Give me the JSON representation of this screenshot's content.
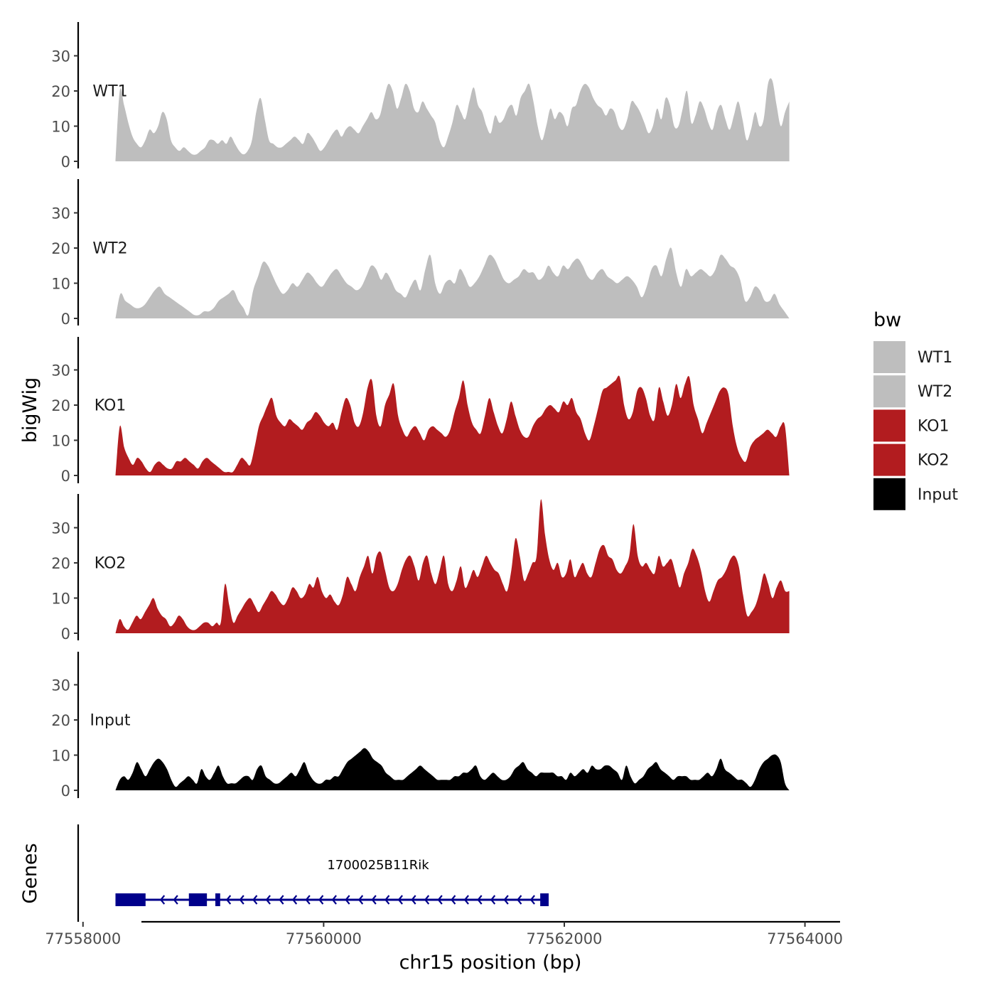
{
  "chart_data": {
    "type": "area",
    "chromosome": "chr15",
    "xlabel": "chr15 position (bp)",
    "ylabel": "bigWig",
    "genes_panel_label": "Genes",
    "xlim": [
      77557960,
      77564280
    ],
    "x_ticks": [
      77558000,
      77560000,
      77562000,
      77564000
    ],
    "x_tick_labels": [
      "77558000",
      "77560000",
      "77562000",
      "77564000"
    ],
    "ylim": [
      0,
      40
    ],
    "y_ticks": [
      0,
      10,
      20,
      30
    ],
    "y_tick_labels": [
      "0",
      "10",
      "20",
      "30"
    ],
    "data_range": [
      77558270,
      77563870
    ],
    "legend": {
      "title": "bw",
      "entries": [
        {
          "label": "WT1",
          "color": "#bebebe"
        },
        {
          "label": "WT2",
          "color": "#bebebe"
        },
        {
          "label": "KO1",
          "color": "#b21c1f"
        },
        {
          "label": "KO2",
          "color": "#b21c1f"
        },
        {
          "label": "Input",
          "color": "#000000"
        }
      ]
    },
    "series": [
      {
        "name": "WT1",
        "color": "#bebebe",
        "values": [
          0,
          20,
          16,
          11,
          7,
          5,
          4,
          6,
          9,
          8,
          10,
          14,
          12,
          6,
          4,
          3,
          4,
          3,
          2,
          2,
          3,
          4,
          6,
          6,
          5,
          6,
          5,
          7,
          5,
          3,
          2,
          3,
          6,
          14,
          18,
          12,
          6,
          5,
          4,
          4,
          5,
          6,
          7,
          6,
          5,
          8,
          7,
          5,
          3,
          4,
          6,
          8,
          9,
          7,
          9,
          10,
          9,
          8,
          10,
          12,
          14,
          12,
          13,
          18,
          22,
          20,
          15,
          18,
          22,
          20,
          15,
          14,
          17,
          15,
          13,
          11,
          6,
          4,
          7,
          11,
          16,
          14,
          12,
          17,
          21,
          16,
          14,
          10,
          8,
          13,
          11,
          12,
          15,
          16,
          13,
          18,
          20,
          22,
          17,
          10,
          6,
          10,
          15,
          12,
          14,
          13,
          10,
          15,
          16,
          20,
          22,
          21,
          18,
          16,
          15,
          13,
          15,
          14,
          10,
          9,
          12,
          17,
          16,
          14,
          11,
          8,
          10,
          15,
          12,
          18,
          16,
          10,
          10,
          15,
          20,
          11,
          13,
          17,
          15,
          11,
          9,
          14,
          16,
          12,
          9,
          13,
          17,
          12,
          6,
          9,
          14,
          10,
          12,
          22,
          23,
          16,
          10,
          14,
          17
        ],
        "max_label": 23
      },
      {
        "name": "WT2",
        "color": "#bebebe",
        "values": [
          0,
          7,
          5,
          4,
          3,
          3,
          4,
          6,
          8,
          9,
          7,
          6,
          5,
          4,
          3,
          2,
          1,
          1,
          2,
          2,
          3,
          5,
          6,
          7,
          8,
          5,
          3,
          1,
          8,
          12,
          16,
          15,
          12,
          9,
          7,
          8,
          10,
          9,
          11,
          13,
          12,
          10,
          9,
          11,
          13,
          14,
          12,
          10,
          9,
          8,
          9,
          12,
          15,
          14,
          11,
          13,
          11,
          8,
          7,
          6,
          9,
          11,
          8,
          14,
          18,
          10,
          7,
          10,
          11,
          10,
          14,
          12,
          9,
          10,
          12,
          15,
          18,
          17,
          14,
          11,
          10,
          11,
          12,
          14,
          13,
          13,
          11,
          12,
          15,
          13,
          12,
          15,
          14,
          16,
          17,
          15,
          12,
          11,
          13,
          14,
          12,
          11,
          10,
          11,
          12,
          11,
          9,
          6,
          9,
          14,
          15,
          12,
          17,
          20,
          13,
          9,
          14,
          12,
          13,
          14,
          13,
          12,
          14,
          18,
          17,
          15,
          14,
          11,
          5,
          6,
          9,
          8,
          5,
          5,
          7,
          4,
          2,
          0
        ],
        "max_label": 20
      },
      {
        "name": "KO1",
        "color": "#b21c1f",
        "values": [
          0,
          14,
          8,
          5,
          3,
          5,
          4,
          2,
          1,
          3,
          4,
          3,
          2,
          2,
          4,
          4,
          5,
          4,
          3,
          2,
          4,
          5,
          4,
          3,
          2,
          1,
          1,
          1,
          3,
          5,
          4,
          3,
          8,
          14,
          17,
          20,
          22,
          17,
          15,
          14,
          16,
          15,
          14,
          13,
          15,
          16,
          18,
          17,
          15,
          14,
          15,
          13,
          18,
          22,
          20,
          15,
          14,
          18,
          25,
          27,
          17,
          14,
          20,
          23,
          26,
          17,
          13,
          11,
          13,
          14,
          12,
          10,
          13,
          14,
          13,
          12,
          11,
          13,
          18,
          22,
          27,
          20,
          15,
          13,
          12,
          17,
          22,
          18,
          14,
          12,
          16,
          21,
          17,
          13,
          11,
          11,
          14,
          16,
          17,
          19,
          20,
          19,
          18,
          21,
          20,
          22,
          18,
          16,
          12,
          10,
          14,
          19,
          24,
          25,
          26,
          27,
          28,
          20,
          16,
          18,
          24,
          25,
          22,
          17,
          16,
          25,
          21,
          17,
          20,
          26,
          22,
          26,
          28,
          20,
          16,
          12,
          15,
          18,
          21,
          24,
          25,
          23,
          14,
          8,
          5,
          4,
          8,
          10,
          11,
          12,
          13,
          12,
          11,
          14,
          14,
          0
        ],
        "max_label": 28
      },
      {
        "name": "KO2",
        "color": "#b21c1f",
        "values": [
          0,
          4,
          2,
          1,
          3,
          5,
          4,
          6,
          8,
          10,
          7,
          5,
          4,
          2,
          3,
          5,
          4,
          2,
          1,
          1,
          2,
          3,
          3,
          2,
          3,
          3,
          14,
          8,
          3,
          5,
          7,
          9,
          10,
          8,
          6,
          8,
          10,
          12,
          11,
          9,
          8,
          10,
          13,
          12,
          10,
          11,
          14,
          13,
          16,
          12,
          10,
          11,
          9,
          8,
          11,
          16,
          14,
          12,
          16,
          19,
          22,
          17,
          22,
          23,
          18,
          13,
          12,
          14,
          18,
          21,
          22,
          19,
          15,
          20,
          22,
          17,
          14,
          18,
          22,
          14,
          12,
          15,
          19,
          13,
          15,
          18,
          16,
          19,
          22,
          20,
          18,
          17,
          14,
          12,
          18,
          27,
          22,
          15,
          17,
          20,
          22,
          38,
          28,
          21,
          18,
          20,
          16,
          17,
          21,
          16,
          18,
          20,
          17,
          16,
          20,
          24,
          25,
          22,
          21,
          18,
          17,
          19,
          22,
          31,
          22,
          19,
          20,
          18,
          17,
          22,
          19,
          20,
          21,
          17,
          13,
          17,
          20,
          24,
          22,
          18,
          12,
          9,
          12,
          15,
          16,
          18,
          21,
          22,
          19,
          11,
          5,
          6,
          8,
          12,
          17,
          14,
          10,
          13,
          15,
          12,
          12
        ],
        "max_label": 38
      },
      {
        "name": "Input",
        "color": "#000000",
        "values": [
          0,
          3,
          4,
          3,
          5,
          8,
          6,
          4,
          6,
          8,
          9,
          8,
          6,
          3,
          1,
          2,
          3,
          4,
          3,
          2,
          6,
          4,
          3,
          5,
          7,
          4,
          2,
          2,
          2,
          3,
          4,
          4,
          3,
          6,
          7,
          4,
          3,
          2,
          2,
          3,
          4,
          5,
          4,
          6,
          8,
          5,
          3,
          2,
          2,
          3,
          3,
          4,
          4,
          6,
          8,
          9,
          10,
          11,
          12,
          11,
          9,
          8,
          7,
          5,
          4,
          3,
          3,
          3,
          4,
          5,
          6,
          7,
          6,
          5,
          4,
          3,
          3,
          3,
          3,
          4,
          4,
          5,
          5,
          6,
          7,
          4,
          3,
          4,
          5,
          4,
          3,
          3,
          4,
          6,
          7,
          8,
          6,
          5,
          4,
          5,
          5,
          5,
          5,
          4,
          4,
          3,
          5,
          4,
          5,
          6,
          5,
          7,
          6,
          6,
          7,
          7,
          6,
          5,
          3,
          7,
          4,
          2,
          3,
          4,
          6,
          7,
          8,
          6,
          5,
          4,
          3,
          4,
          4,
          4,
          3,
          3,
          3,
          4,
          5,
          4,
          6,
          9,
          6,
          5,
          4,
          3,
          3,
          2,
          1,
          3,
          6,
          8,
          9,
          10,
          10,
          8,
          2,
          0
        ],
        "max_label": 12
      }
    ],
    "genes": [
      {
        "name": "1700025B11Rik",
        "start": 77558270,
        "end": 77561870,
        "strand": "-",
        "exons": [
          [
            77558270,
            77558520
          ],
          [
            77558880,
            77559030
          ],
          [
            77559100,
            77559140
          ],
          [
            77561800,
            77561870
          ]
        ]
      }
    ]
  }
}
